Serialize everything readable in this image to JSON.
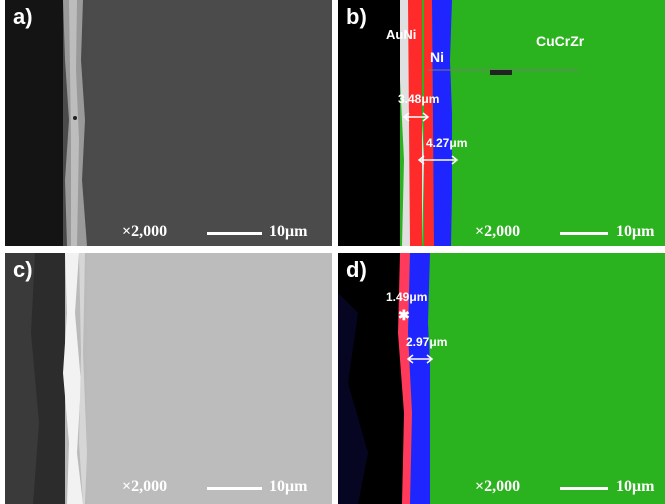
{
  "panels": {
    "a": {
      "label": "a)",
      "magnification": "×2,000",
      "scale_bar": "10μm"
    },
    "b": {
      "label": "b)",
      "magnification": "×2,000",
      "scale_bar": "10μm",
      "layers": {
        "aunI": "AuNi",
        "ni": "Ni",
        "cucrzr": "CuCrZr"
      },
      "measurements": {
        "auni_thickness": "3.48μm",
        "ni_thickness": "4.27μm"
      },
      "colors": {
        "auni": "#ff2a2a",
        "ni": "#1f25ff",
        "cucrzr": "#2bb31f",
        "background": "#000000"
      }
    },
    "c": {
      "label": "c)",
      "magnification": "×2,000",
      "scale_bar": "10μm"
    },
    "d": {
      "label": "d)",
      "magnification": "×2,000",
      "scale_bar": "10μm",
      "measurements": {
        "auni_thickness": "1.49μm",
        "ni_thickness": "2.97μm"
      },
      "colors": {
        "auni": "#ff3a5a",
        "ni": "#1f25ff",
        "cucrzr": "#2bb31f",
        "background": "#000000"
      }
    }
  }
}
